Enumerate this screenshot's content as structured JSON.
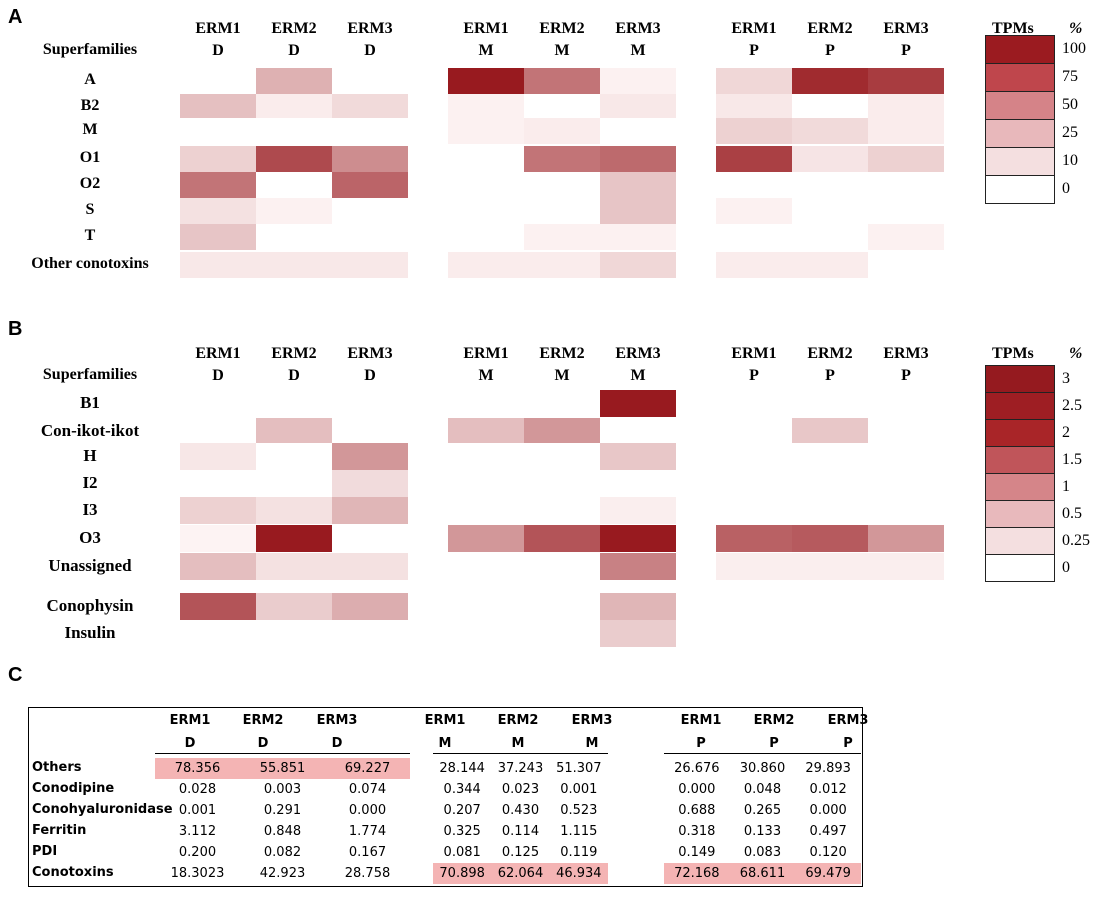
{
  "chart_data": [
    {
      "type": "heatmap",
      "panel": "A",
      "column_headers": [
        {
          "erm": "ERM1",
          "tissue": "D"
        },
        {
          "erm": "ERM2",
          "tissue": "D"
        },
        {
          "erm": "ERM3",
          "tissue": "D"
        },
        {
          "erm": "ERM1",
          "tissue": "M"
        },
        {
          "erm": "ERM2",
          "tissue": "M"
        },
        {
          "erm": "ERM3",
          "tissue": "M"
        },
        {
          "erm": "ERM1",
          "tissue": "P"
        },
        {
          "erm": "ERM2",
          "tissue": "P"
        },
        {
          "erm": "ERM3",
          "tissue": "P"
        }
      ],
      "row_header": "Superfamilies",
      "rows": [
        "A",
        "B2",
        "M",
        "O1",
        "O2",
        "S",
        "T",
        "Other conotoxins"
      ],
      "values": [
        [
          0,
          22,
          0,
          100,
          50,
          1,
          8,
          90,
          80
        ],
        [
          16,
          2,
          7,
          1,
          0,
          3,
          3,
          0,
          2
        ],
        [
          0,
          0,
          0,
          1,
          2,
          0,
          10,
          7,
          2
        ],
        [
          10,
          72,
          38,
          0,
          50,
          55,
          78,
          4,
          10
        ],
        [
          50,
          0,
          58,
          0,
          0,
          14,
          0,
          0,
          0
        ],
        [
          5,
          1,
          0,
          0,
          0,
          14,
          1,
          0,
          0
        ],
        [
          14,
          0,
          0,
          0,
          1,
          1,
          0,
          0,
          1
        ],
        [
          3,
          3,
          3,
          2,
          2,
          8,
          2,
          2,
          0
        ]
      ],
      "legend": {
        "header_left": "TPMs",
        "header_right": "%",
        "levels": [
          "100",
          "75",
          "50",
          "25",
          "10",
          "0"
        ],
        "colors": [
          "#9b1b20",
          "#bf464c",
          "#d58388",
          "#e8b8bb",
          "#f4dfe0",
          "#ffffff"
        ]
      }
    },
    {
      "type": "heatmap",
      "panel": "B",
      "column_headers": [
        {
          "erm": "ERM1",
          "tissue": "D"
        },
        {
          "erm": "ERM2",
          "tissue": "D"
        },
        {
          "erm": "ERM3",
          "tissue": "D"
        },
        {
          "erm": "ERM1",
          "tissue": "M"
        },
        {
          "erm": "ERM2",
          "tissue": "M"
        },
        {
          "erm": "ERM3",
          "tissue": "M"
        },
        {
          "erm": "ERM1",
          "tissue": "P"
        },
        {
          "erm": "ERM2",
          "tissue": "P"
        },
        {
          "erm": "ERM3",
          "tissue": "P"
        }
      ],
      "row_header": "Superfamilies",
      "rows": [
        "B1",
        "Con-ikot-ikot",
        "H",
        "I2",
        "I3",
        "O3",
        "Unassigned",
        "Conophysin",
        "Insulin"
      ],
      "values": [
        [
          0,
          0,
          0,
          0,
          0,
          3,
          0,
          0,
          0
        ],
        [
          0,
          0.5,
          0,
          0.5,
          1,
          0,
          0,
          0.4,
          0
        ],
        [
          0.1,
          0,
          1,
          0,
          0,
          0.4,
          0,
          0,
          0
        ],
        [
          0,
          0,
          0.2,
          0,
          0,
          0,
          0,
          0,
          0
        ],
        [
          0.3,
          0.15,
          0.6,
          0,
          0,
          0.05,
          0,
          0,
          0
        ],
        [
          0.02,
          3,
          0,
          1,
          2,
          3,
          1.8,
          1.9,
          1
        ],
        [
          0.5,
          0.15,
          0.15,
          0,
          0,
          1.3,
          0.05,
          0.05,
          0.05
        ],
        [
          2,
          0.35,
          0.7,
          0,
          0,
          0.6,
          0,
          0,
          0
        ],
        [
          0,
          0,
          0,
          0,
          0,
          0.35,
          0,
          0,
          0
        ]
      ],
      "legend": {
        "header_left": "TPMs",
        "header_right": "%",
        "levels": [
          "3",
          "2.5",
          "2",
          "1.5",
          "1",
          "0.5",
          "0.25",
          "0"
        ],
        "colors": [
          "#951a1f",
          "#9e1e23",
          "#a92528",
          "#c0555a",
          "#d58589",
          "#e8b9bc",
          "#f4dfe0",
          "#ffffff"
        ]
      }
    },
    {
      "type": "table",
      "panel": "C",
      "column_headers": [
        {
          "erm": "ERM1",
          "tissue": "D"
        },
        {
          "erm": "ERM2",
          "tissue": "D"
        },
        {
          "erm": "ERM3",
          "tissue": "D"
        },
        {
          "erm": "ERM1",
          "tissue": "M"
        },
        {
          "erm": "ERM2",
          "tissue": "M"
        },
        {
          "erm": "ERM3",
          "tissue": "M"
        },
        {
          "erm": "ERM1",
          "tissue": "P"
        },
        {
          "erm": "ERM2",
          "tissue": "P"
        },
        {
          "erm": "ERM3",
          "tissue": "P"
        }
      ],
      "rows": [
        {
          "label": "Others",
          "values": [
            "78.356",
            "55.851",
            "69.227",
            "28.144",
            "37.243",
            "51.307",
            "26.676",
            "30.860",
            "29.893"
          ],
          "highlight": [
            0,
            1,
            2
          ]
        },
        {
          "label": "Conodipine",
          "values": [
            "0.028",
            "0.003",
            "0.074",
            "0.344",
            "0.023",
            "0.001",
            "0.000",
            "0.048",
            "0.012"
          ],
          "highlight": []
        },
        {
          "label": "Conohyaluronidase",
          "values": [
            "0.001",
            "0.291",
            "0.000",
            "0.207",
            "0.430",
            "0.523",
            "0.688",
            "0.265",
            "0.000"
          ],
          "highlight": []
        },
        {
          "label": "Ferritin",
          "values": [
            "3.112",
            "0.848",
            "1.774",
            "0.325",
            "0.114",
            "1.115",
            "0.318",
            "0.133",
            "0.497"
          ],
          "highlight": []
        },
        {
          "label": "PDI",
          "values": [
            "0.200",
            "0.082",
            "0.167",
            "0.081",
            "0.125",
            "0.119",
            "0.149",
            "0.083",
            "0.120"
          ],
          "highlight": []
        },
        {
          "label": "Conotoxins",
          "values": [
            "18.3023",
            "42.923",
            "28.758",
            "70.898",
            "62.064",
            "46.934",
            "72.168",
            "68.611",
            "69.479"
          ],
          "highlight": [
            3,
            4,
            5,
            6,
            7,
            8
          ]
        }
      ],
      "highlight_color": "#f4b4b4"
    }
  ],
  "panels": {
    "a": "A",
    "b": "B",
    "c": "C"
  }
}
